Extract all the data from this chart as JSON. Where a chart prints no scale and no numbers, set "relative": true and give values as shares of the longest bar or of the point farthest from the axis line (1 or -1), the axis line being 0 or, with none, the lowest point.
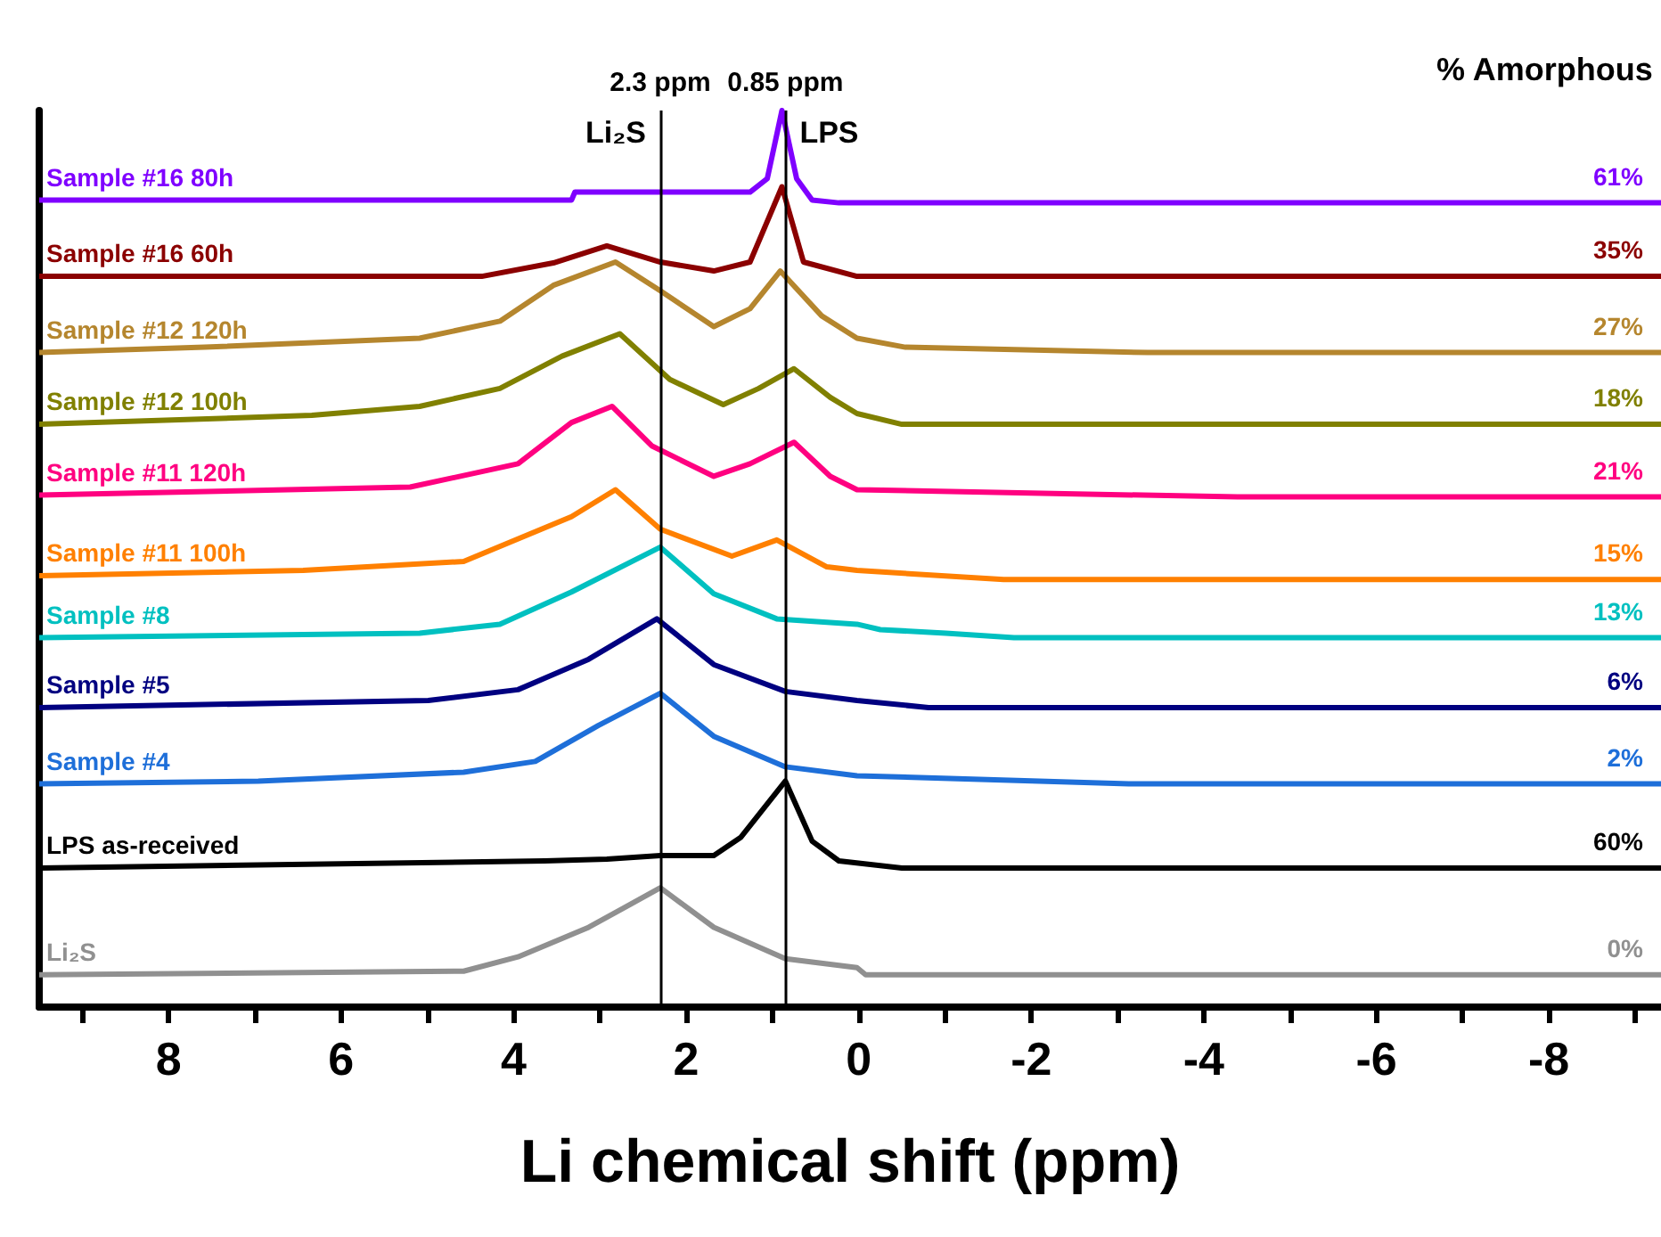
{
  "chart_data": {
    "type": "line",
    "relative": true,
    "xlabel": "Li chemical shift (ppm)",
    "xlim": [
      9.5,
      -9.3
    ],
    "xticks": [
      {
        "value": 9,
        "label": null
      },
      8,
      {
        "value": 7,
        "label": null
      },
      6,
      {
        "value": 5,
        "label": null
      },
      4,
      {
        "value": 3,
        "label": null
      },
      2,
      {
        "value": 1,
        "label": null
      },
      0,
      {
        "value": -1,
        "label": null
      },
      -2,
      {
        "value": -3,
        "label": null
      },
      -4,
      {
        "value": -5,
        "label": null
      },
      -6,
      {
        "value": -7,
        "label": null
      },
      -8,
      {
        "value": -9,
        "label": null
      }
    ],
    "legend": false,
    "grid": false,
    "marker": "none",
    "ref_lines": [
      {
        "axis": "x",
        "value": 2.3,
        "label": "2.3 ppm",
        "color": "#000000"
      },
      {
        "axis": "x",
        "value": 0.85,
        "label": "0.85 ppm",
        "color": "#000000"
      }
    ],
    "annotations": [
      "% Amorphous",
      "Li₂S",
      "LPS",
      "61%",
      "35%",
      "27%",
      "18%",
      "21%",
      "15%",
      "13%",
      "6%",
      "2%",
      "60%",
      "0%"
    ],
    "series": [
      {
        "name": "Sample #16 80h",
        "color": "#7f00ff",
        "x": [
          9.5,
          3.33,
          3.29,
          1.26,
          1.06,
          0.89,
          0.72,
          0.54,
          0.23,
          -9.3
        ],
        "values": [
          0.9,
          0.9,
          0.909,
          0.909,
          0.924,
          1.0,
          0.924,
          0.9,
          0.897,
          0.897
        ]
      },
      {
        "name": "Sample #16 60h",
        "color": "#8b0000",
        "x": [
          9.5,
          4.37,
          3.54,
          2.92,
          2.3,
          1.68,
          1.26,
          0.89,
          0.64,
          0.02,
          -9.3
        ],
        "values": [
          0.815,
          0.815,
          0.83,
          0.849,
          0.831,
          0.821,
          0.831,
          0.915,
          0.831,
          0.815,
          0.815
        ]
      },
      {
        "name": "Sample #12 120h",
        "color": "#b5862e",
        "x": [
          9.5,
          7.58,
          5.09,
          4.16,
          3.54,
          2.82,
          2.3,
          1.68,
          1.26,
          0.91,
          0.43,
          0.02,
          -0.54,
          -3.35,
          -9.3
        ],
        "values": [
          0.73,
          0.736,
          0.746,
          0.765,
          0.805,
          0.831,
          0.799,
          0.759,
          0.779,
          0.821,
          0.771,
          0.746,
          0.736,
          0.73,
          0.73
        ]
      },
      {
        "name": "Sample #12 100h",
        "color": "#808000",
        "x": [
          9.5,
          6.34,
          5.09,
          4.16,
          3.44,
          2.77,
          2.19,
          1.57,
          1.16,
          0.75,
          0.33,
          0.02,
          -0.5,
          -9.3
        ],
        "values": [
          0.65,
          0.66,
          0.67,
          0.69,
          0.726,
          0.751,
          0.7,
          0.672,
          0.69,
          0.712,
          0.68,
          0.662,
          0.65,
          0.65
        ]
      },
      {
        "name": "Sample #11 120h",
        "color": "#ff0080",
        "x": [
          9.5,
          5.2,
          3.95,
          3.33,
          2.86,
          2.4,
          1.68,
          1.26,
          0.75,
          0.33,
          0.02,
          -4.39,
          -9.3
        ],
        "values": [
          0.571,
          0.58,
          0.606,
          0.652,
          0.67,
          0.626,
          0.592,
          0.606,
          0.63,
          0.592,
          0.577,
          0.569,
          0.569
        ]
      },
      {
        "name": "Sample #11 100h",
        "color": "#ff8000",
        "x": [
          9.5,
          6.44,
          4.58,
          3.33,
          2.82,
          2.3,
          1.47,
          0.95,
          0.37,
          0.02,
          -1.68,
          -9.3
        ],
        "values": [
          0.481,
          0.487,
          0.497,
          0.547,
          0.577,
          0.533,
          0.503,
          0.521,
          0.491,
          0.487,
          0.477,
          0.477
        ]
      },
      {
        "name": "Sample #8",
        "color": "#00c0c0",
        "x": [
          9.5,
          5.09,
          4.16,
          3.33,
          2.3,
          1.68,
          0.95,
          0.02,
          -0.25,
          -1.01,
          -1.8,
          -9.3
        ],
        "values": [
          0.412,
          0.417,
          0.427,
          0.463,
          0.513,
          0.461,
          0.433,
          0.427,
          0.421,
          0.417,
          0.412,
          0.412
        ]
      },
      {
        "name": "Sample #5",
        "color": "#000080",
        "x": [
          9.5,
          4.99,
          3.95,
          3.13,
          2.34,
          1.68,
          0.85,
          0.02,
          -0.81,
          -9.3
        ],
        "values": [
          0.334,
          0.342,
          0.354,
          0.388,
          0.433,
          0.382,
          0.352,
          0.342,
          0.334,
          0.334
        ]
      },
      {
        "name": "Sample #4",
        "color": "#1e6fd9",
        "x": [
          9.5,
          6.96,
          4.58,
          3.75,
          3.02,
          2.3,
          1.68,
          0.85,
          0.02,
          -3.13,
          -9.3
        ],
        "values": [
          0.249,
          0.252,
          0.262,
          0.274,
          0.314,
          0.35,
          0.302,
          0.268,
          0.258,
          0.249,
          0.249
        ]
      },
      {
        "name": "LPS as-received",
        "color": "#000000",
        "x": [
          9.5,
          3.64,
          2.92,
          2.3,
          1.68,
          1.37,
          0.85,
          0.54,
          0.23,
          -0.5,
          -9.3
        ],
        "values": [
          0.155,
          0.163,
          0.165,
          0.169,
          0.169,
          0.189,
          0.252,
          0.185,
          0.163,
          0.155,
          0.155
        ]
      },
      {
        "name": "Li₂S",
        "color": "#909090",
        "x": [
          9.5,
          4.58,
          3.95,
          3.13,
          2.3,
          1.68,
          0.85,
          0.02,
          -0.08,
          -9.3
        ],
        "values": [
          0.036,
          0.04,
          0.056,
          0.089,
          0.133,
          0.089,
          0.054,
          0.044,
          0.036,
          0.036
        ]
      }
    ]
  }
}
